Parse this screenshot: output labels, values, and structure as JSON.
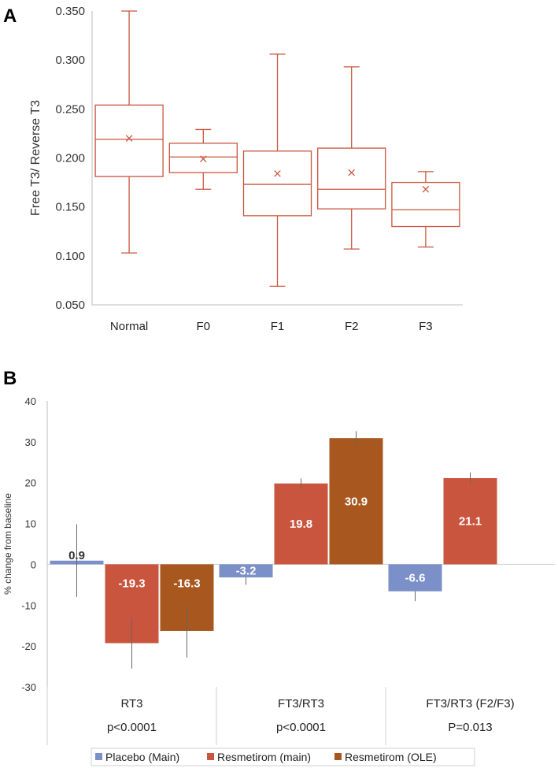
{
  "chart_data": [
    {
      "panel": "A",
      "type": "box",
      "ylabel": "Free T3/ Reverse T3",
      "ylim": [
        0.05,
        0.35
      ],
      "yticks": [
        "0.050",
        "0.100",
        "0.150",
        "0.200",
        "0.250",
        "0.300",
        "0.350"
      ],
      "color": "#c9553e",
      "categories": [
        "Normal",
        "F0",
        "F1",
        "F2",
        "F3"
      ],
      "boxes": [
        {
          "min": 0.103,
          "q1": 0.181,
          "median": 0.219,
          "q3": 0.254,
          "max": 0.35,
          "mean": 0.22
        },
        {
          "min": 0.168,
          "q1": 0.185,
          "median": 0.201,
          "q3": 0.215,
          "max": 0.229,
          "mean": 0.199
        },
        {
          "min": 0.069,
          "q1": 0.141,
          "median": 0.173,
          "q3": 0.207,
          "max": 0.306,
          "mean": 0.184
        },
        {
          "min": 0.107,
          "q1": 0.148,
          "median": 0.168,
          "q3": 0.21,
          "max": 0.293,
          "mean": 0.185
        },
        {
          "min": 0.109,
          "q1": 0.13,
          "median": 0.147,
          "q3": 0.175,
          "max": 0.186,
          "mean": 0.168
        }
      ]
    },
    {
      "panel": "B",
      "type": "bar",
      "ylabel": "% change from baseline",
      "ylim": [
        -30,
        40
      ],
      "yticks": [
        "-30",
        "-20",
        "-10",
        "0",
        "10",
        "20",
        "30",
        "40"
      ],
      "groups": [
        {
          "name": "RT3",
          "p": "p<0.0001"
        },
        {
          "name": "FT3/RT3",
          "p": "p<0.0001"
        },
        {
          "name": "FT3/RT3 (F2/F3)",
          "p": "P=0.013"
        }
      ],
      "series": [
        {
          "name": "Placebo (Main)",
          "color": "#7b8fc8",
          "values": [
            0.9,
            -3.2,
            -6.6
          ],
          "labels": [
            "0.9",
            "-3.2",
            "-6.6"
          ],
          "err_low": [
            -8,
            -5,
            -9
          ],
          "err_high": [
            9.8,
            -3.2,
            -6.6
          ]
        },
        {
          "name": "Resmetirom (main)",
          "color": "#c9553e",
          "values": [
            -19.3,
            19.8,
            21.1
          ],
          "labels": [
            "-19.3",
            "19.8",
            "21.1"
          ],
          "err_low": [
            -25.5,
            18.5,
            19.8
          ],
          "err_high": [
            -13,
            21,
            22.5
          ]
        },
        {
          "name": "Resmetirom (OLE)",
          "color": "#a8571f",
          "values": [
            -16.3,
            30.9,
            null
          ],
          "labels": [
            "-16.3",
            "30.9",
            ""
          ],
          "err_low": [
            -22.8,
            29,
            null
          ],
          "err_high": [
            -10,
            32.6,
            null
          ]
        }
      ]
    }
  ]
}
